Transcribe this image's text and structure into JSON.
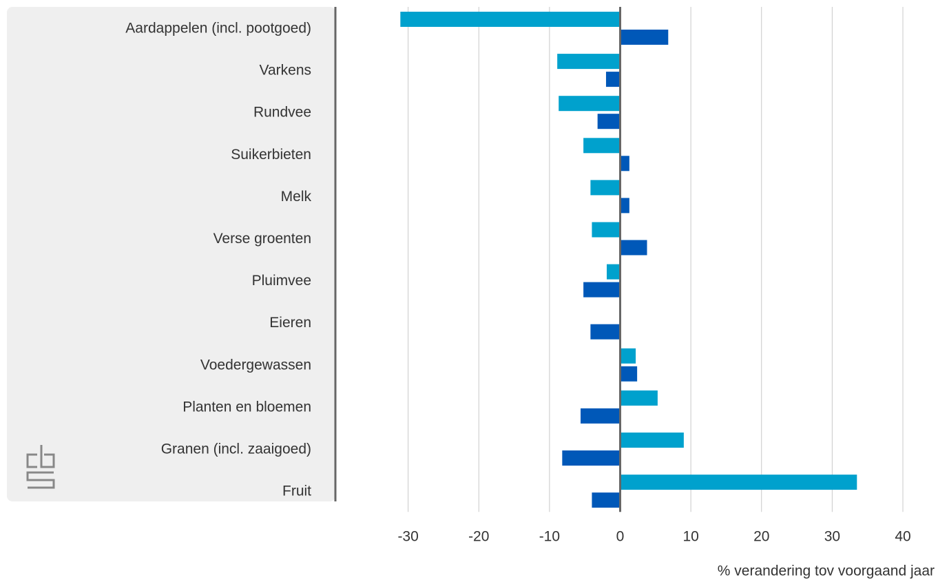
{
  "chart_data": {
    "type": "bar",
    "orientation": "horizontal",
    "xlabel": "% verandering tov voorgaand jaar",
    "categories": [
      "Aardappelen (incl. pootgoed)",
      "Varkens",
      "Rundvee",
      "Suikerbieten",
      "Melk",
      "Verse groenten",
      "Pluimvee",
      "Eieren",
      "Voedergewassen",
      "Planten en bloemen",
      "Granen (incl. zaaigoed)",
      "Fruit"
    ],
    "series": [
      {
        "color": "#00a1cd",
        "values": [
          -31.1,
          -8.9,
          -8.7,
          -5.2,
          -4.2,
          -4.0,
          -1.9,
          -0.1,
          2.2,
          5.3,
          9.0,
          33.5
        ]
      },
      {
        "color": "#0058b8",
        "values": [
          6.8,
          -2.0,
          -3.2,
          1.3,
          1.3,
          3.8,
          -5.2,
          -4.2,
          2.4,
          -5.6,
          -8.2,
          -4.0
        ]
      }
    ],
    "xlim": [
      -40,
      40
    ],
    "xticks": [
      -30,
      -20,
      -10,
      0,
      10,
      20,
      30,
      40
    ],
    "grid": true
  }
}
